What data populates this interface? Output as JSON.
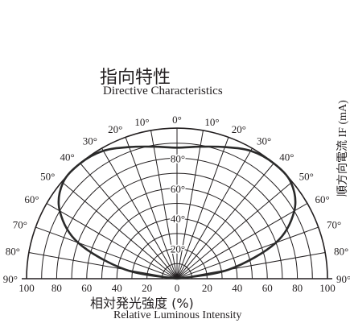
{
  "chart_data": {
    "type": "polar-line",
    "title": "指向特性",
    "subtitle": "Directive Characteristics",
    "xlabel": "相対発光強度 (%)",
    "xlabel_en": "Relative Luminous Intensity",
    "side_label": "順方向電流 IF (mA)",
    "angle_ticks": [
      "90°",
      "80°",
      "70°",
      "60°",
      "50°",
      "40°",
      "30°",
      "20°",
      "10°",
      "0°",
      "10°",
      "20°",
      "30°",
      "40°",
      "50°",
      "60°",
      "70°",
      "80°",
      "90°"
    ],
    "angle_values": [
      -90,
      -80,
      -70,
      -60,
      -50,
      -40,
      -30,
      -20,
      -10,
      0,
      10,
      20,
      30,
      40,
      50,
      60,
      70,
      80,
      90
    ],
    "radial_ticks": [
      "20°",
      "40°",
      "60°",
      "80°"
    ],
    "radial_values": [
      20,
      40,
      60,
      80
    ],
    "x_ticks": [
      "100",
      "80",
      "60",
      "40",
      "20",
      "0",
      "20",
      "40",
      "60",
      "80",
      "100"
    ],
    "x_tick_values": [
      -100,
      -80,
      -60,
      -40,
      -20,
      0,
      20,
      40,
      60,
      80,
      100
    ],
    "series": [
      {
        "angles": [
          -90,
          -80,
          -70,
          -60,
          -50,
          -40,
          -30,
          -20,
          -10,
          0,
          10,
          20,
          30,
          40,
          50,
          60,
          70,
          80,
          90
        ],
        "values": [
          0,
          35,
          70,
          90,
          99,
          100,
          98,
          93,
          89,
          87,
          89,
          93,
          98,
          100,
          99,
          90,
          70,
          35,
          0
        ]
      }
    ],
    "rlim": [
      0,
      100
    ],
    "grid": true,
    "colors": {
      "line": "#231f20",
      "grid": "#231f20",
      "curve": "#2a2a2a"
    }
  }
}
